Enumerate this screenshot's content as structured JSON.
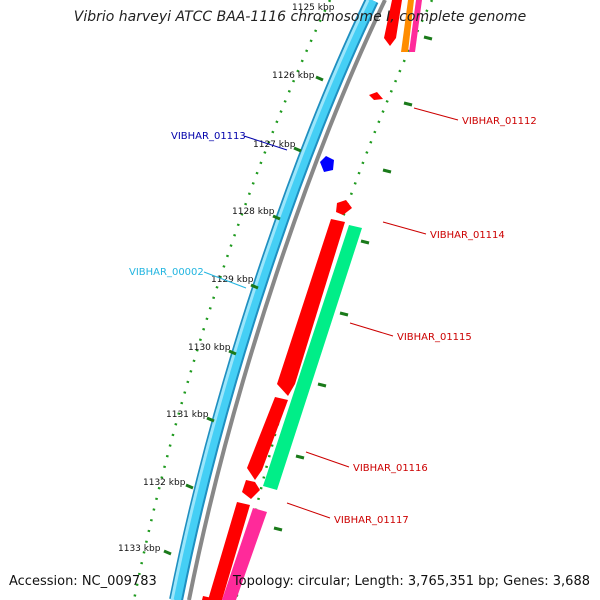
{
  "title": "Vibrio harveyi ATCC BAA-1116 chromosome I, complete genome",
  "footer": {
    "accession": "Accession: NC_009783",
    "summary": "Topology: circular; Length: 3,765,351 bp; Genes: 3,688"
  },
  "colors": {
    "forward_cds": "#ff0000",
    "reverse_cds": "#00ee88",
    "magenta_feature": "#ff2a9a",
    "orange_feature": "#ff8c00",
    "blue_feature": "#0000ff",
    "backbone_cyan": "#3ac6f2",
    "backbone_grey": "#888888",
    "tick_green": "#1a7a1a",
    "label_red": "#cc0000",
    "label_darkblue": "#0000aa",
    "label_cyan": "#22b5e0"
  },
  "scale_ticks": [
    {
      "label": "1125 kbp"
    },
    {
      "label": "1126 kbp"
    },
    {
      "label": "1127 kbp"
    },
    {
      "label": "1128 kbp"
    },
    {
      "label": "1129 kbp"
    },
    {
      "label": "1130 kbp"
    },
    {
      "label": "1131 kbp"
    },
    {
      "label": "1132 kbp"
    },
    {
      "label": "1133 kbp"
    }
  ],
  "gene_labels": [
    {
      "name": "VIBHAR_01112",
      "color": "#cc0000"
    },
    {
      "name": "VIBHAR_01113",
      "color": "#0000aa"
    },
    {
      "name": "VIBHAR_01114",
      "color": "#cc0000"
    },
    {
      "name": "VIBHAR_00002",
      "color": "#22b5e0"
    },
    {
      "name": "VIBHAR_01115",
      "color": "#cc0000"
    },
    {
      "name": "VIBHAR_01116",
      "color": "#cc0000"
    },
    {
      "name": "VIBHAR_01117",
      "color": "#cc0000"
    }
  ]
}
